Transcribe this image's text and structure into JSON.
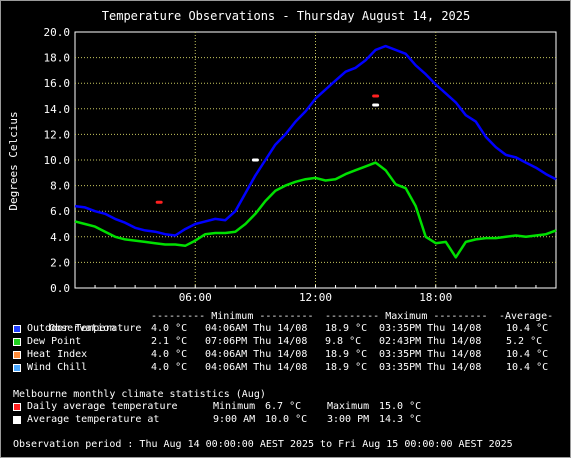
{
  "chart_data": {
    "type": "line",
    "title": "Temperature Observations - Thursday August 14, 2025",
    "ylabel": "Degrees Celcius",
    "xlabel": "",
    "ylim": [
      0,
      20
    ],
    "yticks": [
      "0.0",
      "2.0",
      "4.0",
      "6.0",
      "8.0",
      "10.0",
      "12.0",
      "14.0",
      "16.0",
      "18.0",
      "20.0"
    ],
    "xlim_hours": [
      0,
      24
    ],
    "xticks": [
      {
        "hour": 6,
        "label": "06:00"
      },
      {
        "hour": 12,
        "label": "12:00"
      },
      {
        "hour": 18,
        "label": "18:00"
      }
    ],
    "grid": true,
    "series": [
      {
        "name": "Outdoor Temperature",
        "color": "#0000ff",
        "x": [
          0,
          0.5,
          1,
          1.5,
          2,
          2.5,
          3,
          3.5,
          4,
          4.5,
          5,
          5.5,
          6,
          6.5,
          7,
          7.5,
          8,
          8.5,
          9,
          9.5,
          10,
          10.5,
          11,
          11.5,
          12,
          12.5,
          13,
          13.5,
          14,
          14.5,
          15,
          15.5,
          16,
          16.5,
          17,
          17.5,
          18,
          18.5,
          19,
          19.5,
          20,
          20.5,
          21,
          21.5,
          22,
          22.5,
          23,
          23.5,
          24
        ],
        "values": [
          6.4,
          6.3,
          6.0,
          5.8,
          5.4,
          5.1,
          4.7,
          4.5,
          4.4,
          4.2,
          4.1,
          4.6,
          5.0,
          5.2,
          5.4,
          5.3,
          6.0,
          7.4,
          8.8,
          10.0,
          11.2,
          12.0,
          13.0,
          13.8,
          14.8,
          15.5,
          16.2,
          16.9,
          17.2,
          17.8,
          18.6,
          18.9,
          18.6,
          18.3,
          17.4,
          16.7,
          15.9,
          15.2,
          14.5,
          13.5,
          13.0,
          11.8,
          11.0,
          10.4,
          10.2,
          9.8,
          9.4,
          8.9,
          8.5
        ]
      },
      {
        "name": "Dew Point",
        "color": "#00e000",
        "x": [
          0,
          0.5,
          1,
          1.5,
          2,
          2.5,
          3,
          3.5,
          4,
          4.5,
          5,
          5.5,
          6,
          6.5,
          7,
          7.5,
          8,
          8.5,
          9,
          9.5,
          10,
          10.5,
          11,
          11.5,
          12,
          12.5,
          13,
          13.5,
          14,
          14.5,
          15,
          15.5,
          16,
          16.5,
          17,
          17.5,
          18,
          18.5,
          19,
          19.5,
          20,
          20.5,
          21,
          21.5,
          22,
          22.5,
          23,
          23.5,
          24
        ],
        "values": [
          5.2,
          5.0,
          4.8,
          4.4,
          4.0,
          3.8,
          3.7,
          3.6,
          3.5,
          3.4,
          3.4,
          3.3,
          3.7,
          4.2,
          4.3,
          4.3,
          4.4,
          5.0,
          5.8,
          6.8,
          7.6,
          8.0,
          8.3,
          8.5,
          8.6,
          8.4,
          8.5,
          8.9,
          9.2,
          9.5,
          9.8,
          9.2,
          8.1,
          7.8,
          6.4,
          4.0,
          3.5,
          3.6,
          2.4,
          3.6,
          3.8,
          3.9,
          3.9,
          4.0,
          4.1,
          4.0,
          4.1,
          4.2,
          4.5
        ]
      },
      {
        "name": "Heat Index",
        "color": "#ff8c3a",
        "hidden_under": "Outdoor Temperature"
      },
      {
        "name": "Wind Chill",
        "color": "#3a9cff",
        "hidden_under": "Outdoor Temperature"
      }
    ],
    "climate_markers": [
      {
        "name": "Daily average temperature",
        "color": "#ff2020",
        "points": [
          {
            "hour": 4.2,
            "value": 6.7
          },
          {
            "hour": 15.0,
            "value": 15.0
          }
        ]
      },
      {
        "name": "Average temperature at",
        "color": "#ffffff",
        "points": [
          {
            "hour": 9.0,
            "value": 10.0
          },
          {
            "hour": 15.0,
            "value": 14.3
          }
        ]
      }
    ]
  },
  "legend": {
    "header": {
      "observation": "Observation",
      "minimum": "--------- Minimum ---------",
      "maximum": "--------- Maximum ---------",
      "average": "-Average-"
    },
    "rows": [
      {
        "name": "Outdoor Temperature",
        "color": "#1f3fff",
        "min": "4.0 °C",
        "min_time": "04:06AM Thu 14/08",
        "max": "18.9 °C",
        "max_time": "03:35PM Thu 14/08",
        "avg": "10.4 °C"
      },
      {
        "name": "Dew Point",
        "color": "#1fd01f",
        "min": "2.1 °C",
        "min_time": "07:06PM Thu 14/08",
        "max": "9.8 °C",
        "max_time": "02:43PM Thu 14/08",
        "avg": "5.2 °C"
      },
      {
        "name": "Heat Index",
        "color": "#ff8c3a",
        "min": "4.0 °C",
        "min_time": "04:06AM Thu 14/08",
        "max": "18.9 °C",
        "max_time": "03:35PM Thu 14/08",
        "avg": "10.4 °C"
      },
      {
        "name": "Wind Chill",
        "color": "#4aa8ff",
        "min": "4.0 °C",
        "min_time": "04:06AM Thu 14/08",
        "max": "18.9 °C",
        "max_time": "03:35PM Thu 14/08",
        "avg": "10.4 °C"
      }
    ]
  },
  "climate": {
    "heading": "Melbourne monthly climate statistics (Aug)",
    "rows": [
      {
        "name": "Daily average temperature",
        "color": "#ff2020",
        "a_label": "Minimum",
        "a_value": "6.7 °C",
        "b_label": "Maximum",
        "b_value": "15.0 °C"
      },
      {
        "name": "Average temperature at",
        "color": "#ffffff",
        "a_label": "9:00 AM",
        "a_value": "10.0 °C",
        "b_label": "3:00 PM",
        "b_value": "14.3 °C"
      }
    ]
  },
  "period": "Observation period : Thu Aug 14 00:00:00 AEST 2025 to Fri Aug 15 00:00:00 AEST 2025"
}
